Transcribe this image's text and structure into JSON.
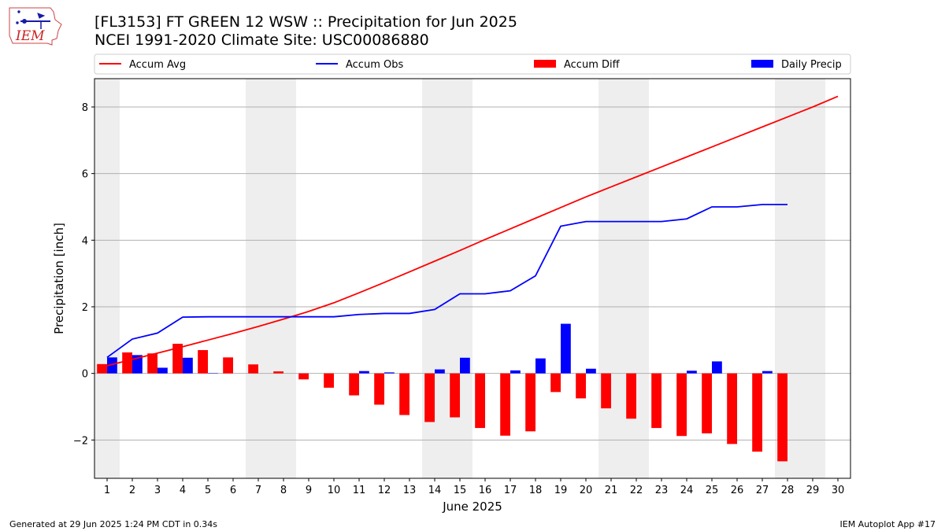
{
  "header": {
    "logo_text": "IEM",
    "title_line1": "[FL3153] FT GREEN 12 WSW :: Precipitation for Jun 2025",
    "title_line2": "NCEI 1991-2020 Climate Site: USC00086880"
  },
  "footer": {
    "generated": "Generated at 29 Jun 2025 1:24 PM CDT in 0.34s",
    "app": "IEM Autoplot App #17"
  },
  "colors": {
    "avg": "#ff0000",
    "obs": "#0000ff",
    "diff": "#ff0000",
    "daily": "#0000ff",
    "weekend_shade": "#eeeeee",
    "grid": "#b0b0b0"
  },
  "chart_data": {
    "type": "bar",
    "xlabel": "June 2025",
    "ylabel": "Precipitation [inch]",
    "xlim": [
      0.5,
      30.5
    ],
    "ylim": [
      -3.15,
      8.85
    ],
    "yticks": [
      -2,
      0,
      2,
      4,
      6,
      8
    ],
    "ytick_labels": [
      "−2",
      "0",
      "2",
      "4",
      "6",
      "8"
    ],
    "grid": "horizontal",
    "legend_placement": "top, above plot",
    "days": [
      1,
      2,
      3,
      4,
      5,
      6,
      7,
      8,
      9,
      10,
      11,
      12,
      13,
      14,
      15,
      16,
      17,
      18,
      19,
      20,
      21,
      22,
      23,
      24,
      25,
      26,
      27,
      28,
      29,
      30
    ],
    "weekend_spans": [
      [
        0.5,
        1.5
      ],
      [
        6.5,
        8.5
      ],
      [
        13.5,
        15.5
      ],
      [
        20.5,
        22.5
      ],
      [
        27.5,
        29.5
      ]
    ],
    "series": [
      {
        "name": "Accum Avg",
        "kind": "line",
        "values": [
          0.23,
          0.42,
          0.61,
          0.8,
          1.0,
          1.2,
          1.41,
          1.63,
          1.86,
          2.12,
          2.42,
          2.73,
          3.05,
          3.37,
          3.69,
          4.02,
          4.34,
          4.66,
          4.98,
          5.3,
          5.6,
          5.9,
          6.2,
          6.5,
          6.8,
          7.1,
          7.4,
          7.7,
          8.0,
          8.32
        ]
      },
      {
        "name": "Accum Obs",
        "kind": "line",
        "values": [
          0.48,
          1.03,
          1.21,
          1.69,
          1.7,
          1.7,
          1.7,
          1.7,
          1.7,
          1.7,
          1.77,
          1.8,
          1.8,
          1.92,
          2.39,
          2.39,
          2.48,
          2.93,
          4.42,
          4.56,
          4.56,
          4.56,
          4.56,
          4.64,
          5.0,
          5.0,
          5.07,
          5.07,
          null,
          null
        ]
      },
      {
        "name": "Accum Diff",
        "kind": "bar",
        "values": [
          0.28,
          0.63,
          0.6,
          0.89,
          0.7,
          0.48,
          0.27,
          0.06,
          -0.18,
          -0.43,
          -0.66,
          -0.94,
          -1.25,
          -1.46,
          -1.32,
          -1.64,
          -1.87,
          -1.74,
          -0.56,
          -0.75,
          -1.05,
          -1.36,
          -1.64,
          -1.88,
          -1.8,
          -2.12,
          -2.35,
          -2.64,
          null,
          null
        ]
      },
      {
        "name": "Daily Precip",
        "kind": "bar",
        "values": [
          0.48,
          0.55,
          0.17,
          0.47,
          0.01,
          0.0,
          0.0,
          0.0,
          0.0,
          0.0,
          0.07,
          0.03,
          0.0,
          0.12,
          0.47,
          0.0,
          0.09,
          0.45,
          1.49,
          0.14,
          0.0,
          0.0,
          0.0,
          0.08,
          0.36,
          0.0,
          0.07,
          0.0,
          null,
          null
        ]
      }
    ]
  }
}
